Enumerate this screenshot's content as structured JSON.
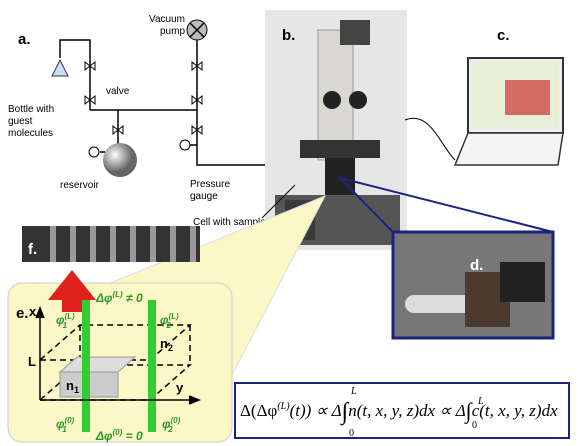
{
  "panel_a": {
    "label": "a.",
    "vacuum_pump": [
      "Vacuum",
      "pump"
    ],
    "valve": "valve",
    "bottle": [
      "Bottle with",
      "guest",
      "molecules"
    ],
    "reservoir": "reservoir",
    "pressure_gauge": [
      "Pressure",
      "gauge"
    ]
  },
  "panel_b": {
    "label": "b.",
    "cell": "Cell with sample"
  },
  "panel_c": {
    "label": "c."
  },
  "panel_d": {
    "label": "d."
  },
  "panel_f": {
    "label": "f."
  },
  "panel_e": {
    "label": "e.",
    "x": "x",
    "y": "y",
    "L": "L",
    "n1": {
      "base": "n",
      "sub": "1"
    },
    "n2": {
      "base": "n",
      "sub": "2"
    },
    "dphi_L": {
      "base": "Δφ",
      "sup": "(L)",
      "rest": " ≠ 0"
    },
    "dphi_0": {
      "base": "Δφ",
      "sup": "(0)",
      "rest": " = 0"
    },
    "phi1_L": {
      "base": "φ",
      "sub": "1",
      "sup": "(L)"
    },
    "phi2_L": {
      "base": "φ",
      "sub": "2",
      "sup": "(L)"
    },
    "phi1_0": {
      "base": "φ",
      "sub": "1",
      "sup": "(0)"
    },
    "phi2_0": {
      "base": "φ",
      "sub": "2",
      "sup": "(0)"
    }
  },
  "formula": {
    "lhs": "Δ(Δφ",
    "lhs_sup": "(L)",
    "lhs_end": "(t)) ∝ Δ",
    "int1": "∫",
    "int1_upper": "L",
    "int1_lower": "0",
    "term1": "n(t, x, y, z)dx ∝ Δ",
    "int2": "∫",
    "int2_upper": "L",
    "int2_lower": "0",
    "term2": "c(t, x, y, z)dx"
  }
}
